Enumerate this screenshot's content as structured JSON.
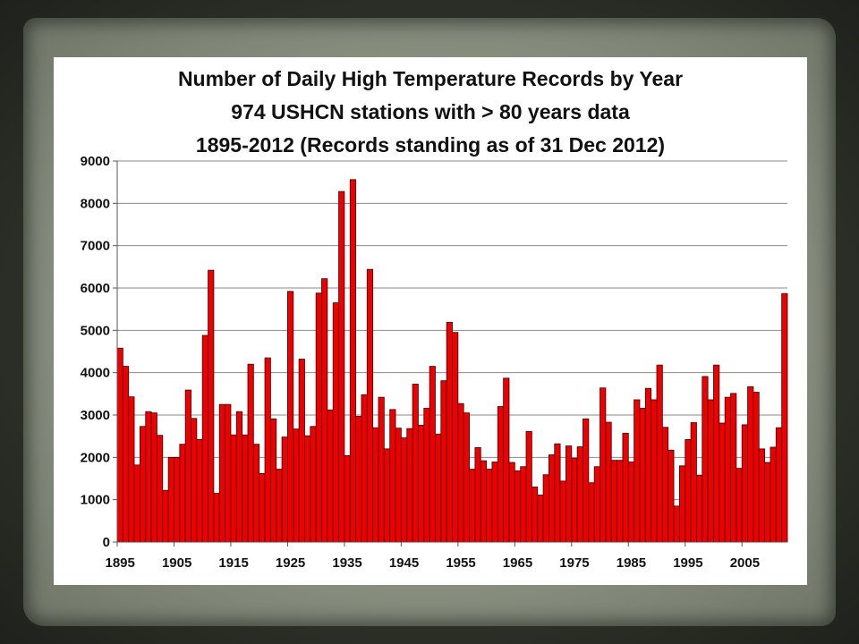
{
  "chart_data": {
    "type": "bar",
    "title": [
      "Number of Daily High Temperature Records by Year",
      "974 USHCN stations with > 80 years data",
      "1895-2012 (Records standing as of 31 Dec 2012)"
    ],
    "xlabel": "",
    "ylabel": "",
    "ylim": [
      0,
      9000
    ],
    "yticks": [
      0,
      1000,
      2000,
      3000,
      4000,
      5000,
      6000,
      7000,
      8000,
      9000
    ],
    "xtick_labels": [
      "1895",
      "1905",
      "1915",
      "1925",
      "1935",
      "1945",
      "1955",
      "1965",
      "1975",
      "1985",
      "1995",
      "2005"
    ],
    "grid": true,
    "bar_color": "#ee0000",
    "bar_edge_color": "#3a0000",
    "categories": [
      1895,
      1896,
      1897,
      1898,
      1899,
      1900,
      1901,
      1902,
      1903,
      1904,
      1905,
      1906,
      1907,
      1908,
      1909,
      1910,
      1911,
      1912,
      1913,
      1914,
      1915,
      1916,
      1917,
      1918,
      1919,
      1920,
      1921,
      1922,
      1923,
      1924,
      1925,
      1926,
      1927,
      1928,
      1929,
      1930,
      1931,
      1932,
      1933,
      1934,
      1935,
      1936,
      1937,
      1938,
      1939,
      1940,
      1941,
      1942,
      1943,
      1944,
      1945,
      1946,
      1947,
      1948,
      1949,
      1950,
      1951,
      1952,
      1953,
      1954,
      1955,
      1956,
      1957,
      1958,
      1959,
      1960,
      1961,
      1962,
      1963,
      1964,
      1965,
      1966,
      1967,
      1968,
      1969,
      1970,
      1971,
      1972,
      1973,
      1974,
      1975,
      1976,
      1977,
      1978,
      1979,
      1980,
      1981,
      1982,
      1983,
      1984,
      1985,
      1986,
      1987,
      1988,
      1989,
      1990,
      1991,
      1992,
      1993,
      1994,
      1995,
      1996,
      1997,
      1998,
      1999,
      2000,
      2001,
      2002,
      2003,
      2004,
      2005,
      2006,
      2007,
      2008,
      2009,
      2010,
      2011,
      2012
    ],
    "values": [
      4580,
      4150,
      3430,
      1820,
      2730,
      3080,
      3050,
      2520,
      1220,
      2000,
      2000,
      2310,
      3590,
      2920,
      2420,
      4880,
      6420,
      1150,
      3250,
      3250,
      2530,
      3080,
      2530,
      4200,
      2310,
      1620,
      4350,
      2910,
      1720,
      2480,
      5920,
      2670,
      4320,
      2510,
      2730,
      5880,
      6220,
      3120,
      5650,
      8280,
      2040,
      8560,
      2970,
      3480,
      6440,
      2700,
      3420,
      2200,
      3130,
      2690,
      2460,
      2680,
      3730,
      2760,
      3160,
      4150,
      2550,
      3810,
      5190,
      4950,
      3270,
      3050,
      1720,
      2230,
      1920,
      1720,
      1890,
      3200,
      3870,
      1880,
      1680,
      1780,
      2610,
      1300,
      1110,
      1590,
      2060,
      2320,
      1440,
      2270,
      1980,
      2250,
      2910,
      1400,
      1780,
      3640,
      2830,
      1930,
      1930,
      2570,
      1890,
      3360,
      3160,
      3630,
      3360,
      4180,
      2710,
      2170,
      850,
      1800,
      2420,
      2820,
      1580,
      3910,
      3360,
      4180,
      2810,
      3420,
      3510,
      1740,
      2770,
      3670,
      3540,
      2200,
      1880,
      2240,
      2700,
      5870
    ]
  }
}
